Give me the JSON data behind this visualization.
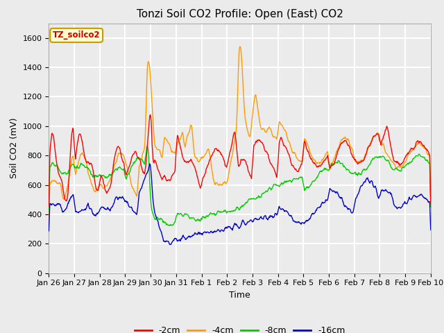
{
  "title": "Tonzi Soil CO2 Profile: Open (East) CO2",
  "xlabel": "Time",
  "ylabel": "Soil CO2 (mV)",
  "ylim": [
    0,
    1700
  ],
  "yticks": [
    0,
    200,
    400,
    600,
    800,
    1000,
    1200,
    1400,
    1600
  ],
  "x_labels": [
    "Jan 26",
    "Jan 27",
    "Jan 28",
    "Jan 29",
    "Jan 30",
    "Jan 31",
    "Feb 1",
    "Feb 2",
    "Feb 3",
    "Feb 4",
    "Feb 5",
    "Feb 6",
    "Feb 7",
    "Feb 8",
    "Feb 9",
    "Feb 10"
  ],
  "series_colors": [
    "#ff0000",
    "#ff9900",
    "#00cc00",
    "#0000cc"
  ],
  "series_labels": [
    "-2cm",
    "-4cm",
    "-8cm",
    "-16cm"
  ],
  "legend_text": "TZ_soilco2",
  "legend_text_color": "#cc0000",
  "legend_bg": "#ffffcc",
  "legend_border": "#cc9900",
  "plot_bg": "#ebebeb",
  "fig_bg": "#ebebeb",
  "grid_color": "#ffffff",
  "title_fontsize": 11,
  "tick_fontsize": 8,
  "label_fontsize": 9
}
